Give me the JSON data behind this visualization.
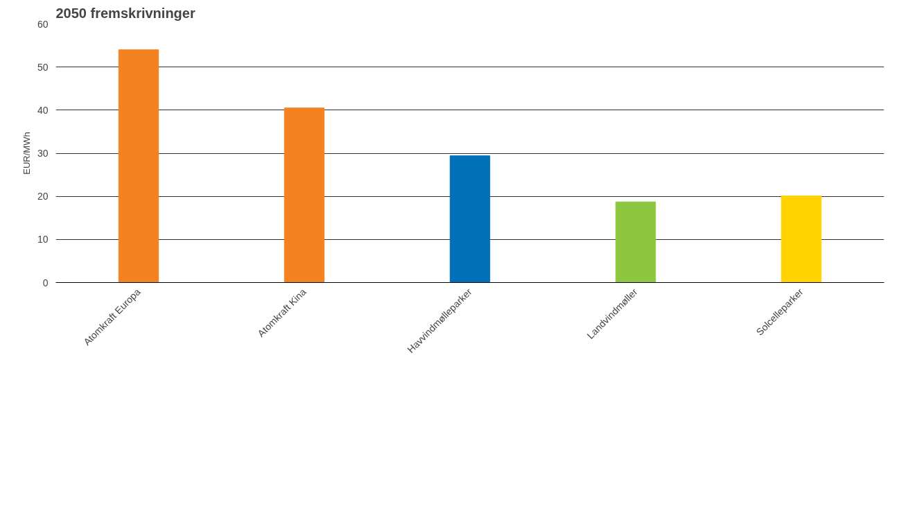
{
  "chart_data": {
    "type": "bar",
    "title": "2050 fremskrivninger",
    "ylabel": "EUR/MWh",
    "categories": [
      "Atomkraft Europa",
      "Atomkraft Kina",
      "Havvindmølleparker",
      "Landvindmøller",
      "Solcelleparker"
    ],
    "values": [
      54,
      40.5,
      29.4,
      18.7,
      20.1
    ],
    "colors": [
      "#f58220",
      "#f58220",
      "#0070b8",
      "#8dc63f",
      "#ffd200"
    ],
    "ylim": [
      0,
      60
    ],
    "yticks": [
      0,
      10,
      20,
      30,
      40,
      50,
      60
    ],
    "grid": "y"
  }
}
